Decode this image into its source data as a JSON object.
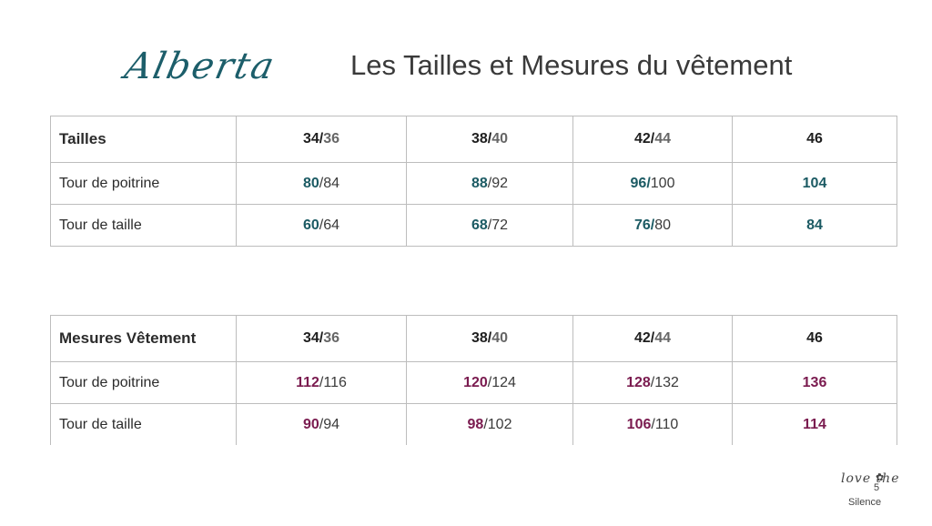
{
  "header": {
    "script_title": "Alberta",
    "title": "Les Tailles et Mesures du vêtement"
  },
  "table1": {
    "header_label": "Tailles",
    "sizes": [
      {
        "main": "34/",
        "sub": "36"
      },
      {
        "main": "38/",
        "sub": "40"
      },
      {
        "main": "42/",
        "sub": "44"
      },
      {
        "main": "46",
        "sub": ""
      }
    ],
    "rows": [
      {
        "label": "Tour  de poitrine",
        "cells": [
          {
            "main": "80",
            "sub": "/84"
          },
          {
            "main": "88",
            "sub": "/92"
          },
          {
            "main": "96/",
            "sub": "100"
          },
          {
            "main": "104",
            "sub": ""
          }
        ]
      },
      {
        "label": "Tour de taille",
        "cells": [
          {
            "main": "60",
            "sub": "/64"
          },
          {
            "main": "68",
            "sub": "/72"
          },
          {
            "main": "76/",
            "sub": "80"
          },
          {
            "main": "84",
            "sub": ""
          }
        ]
      }
    ]
  },
  "table2": {
    "header_label": "Mesures Vêtement",
    "sizes": [
      {
        "main": "34/",
        "sub": "36"
      },
      {
        "main": "38/",
        "sub": "40"
      },
      {
        "main": "42/",
        "sub": "44"
      },
      {
        "main": "46",
        "sub": ""
      }
    ],
    "rows": [
      {
        "label": "Tour  de poitrine",
        "cells": [
          {
            "main": "112",
            "sub": "/116"
          },
          {
            "main": "120",
            "sub": "/124"
          },
          {
            "main": "128",
            "sub": "/132"
          },
          {
            "main": "136",
            "sub": ""
          }
        ]
      },
      {
        "label": "Tour de taille",
        "cells": [
          {
            "main": "90",
            "sub": "/94"
          },
          {
            "main": "98",
            "sub": "/102"
          },
          {
            "main": "106",
            "sub": "/110"
          },
          {
            "main": "114",
            "sub": ""
          }
        ]
      }
    ]
  },
  "footer": {
    "logo_script": "love the",
    "page_number": "5",
    "logo_sub": "Silence"
  },
  "colors": {
    "teal": "#1b5a63",
    "plum": "#7a1b4f"
  }
}
